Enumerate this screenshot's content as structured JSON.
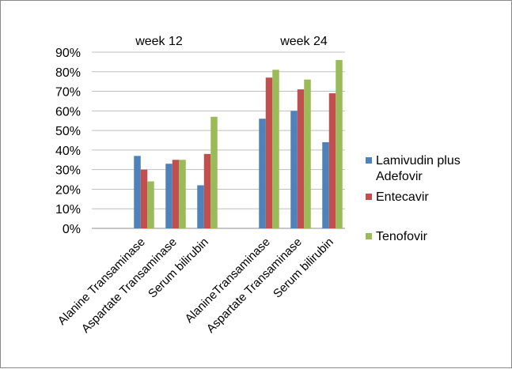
{
  "chart_data": {
    "type": "bar",
    "title": "",
    "xlabel": "",
    "ylabel": "",
    "ylim": [
      0,
      90
    ],
    "y_tick_values": [
      0,
      10,
      20,
      30,
      40,
      50,
      60,
      70,
      80,
      90
    ],
    "y_tick_labels": [
      "0%",
      "10%",
      "20%",
      "30%",
      "40%",
      "50%",
      "60%",
      "70%",
      "80%",
      "90%"
    ],
    "grid": true,
    "legend_position": "right",
    "groups": [
      "week 12",
      "week 24"
    ],
    "categories": [
      "Alanine Transaminase",
      "Aspartate Transaminase",
      "Serum bilirubin",
      "AlanineTransaminase",
      "Aspartate Transaminase",
      "Serum  bilirubin"
    ],
    "category_group": [
      0,
      0,
      0,
      1,
      1,
      1
    ],
    "series": [
      {
        "name": "Lamivudin plus Adefovir",
        "color": "#4f81bd",
        "values": [
          37,
          33,
          22,
          56,
          60,
          44
        ]
      },
      {
        "name": "Entecavir",
        "color": "#c0504d",
        "values": [
          30,
          35,
          38,
          77,
          71,
          69
        ]
      },
      {
        "name": "Tenofovir",
        "color": "#9bbb59",
        "values": [
          24,
          35,
          57,
          81,
          76,
          86
        ]
      }
    ]
  }
}
